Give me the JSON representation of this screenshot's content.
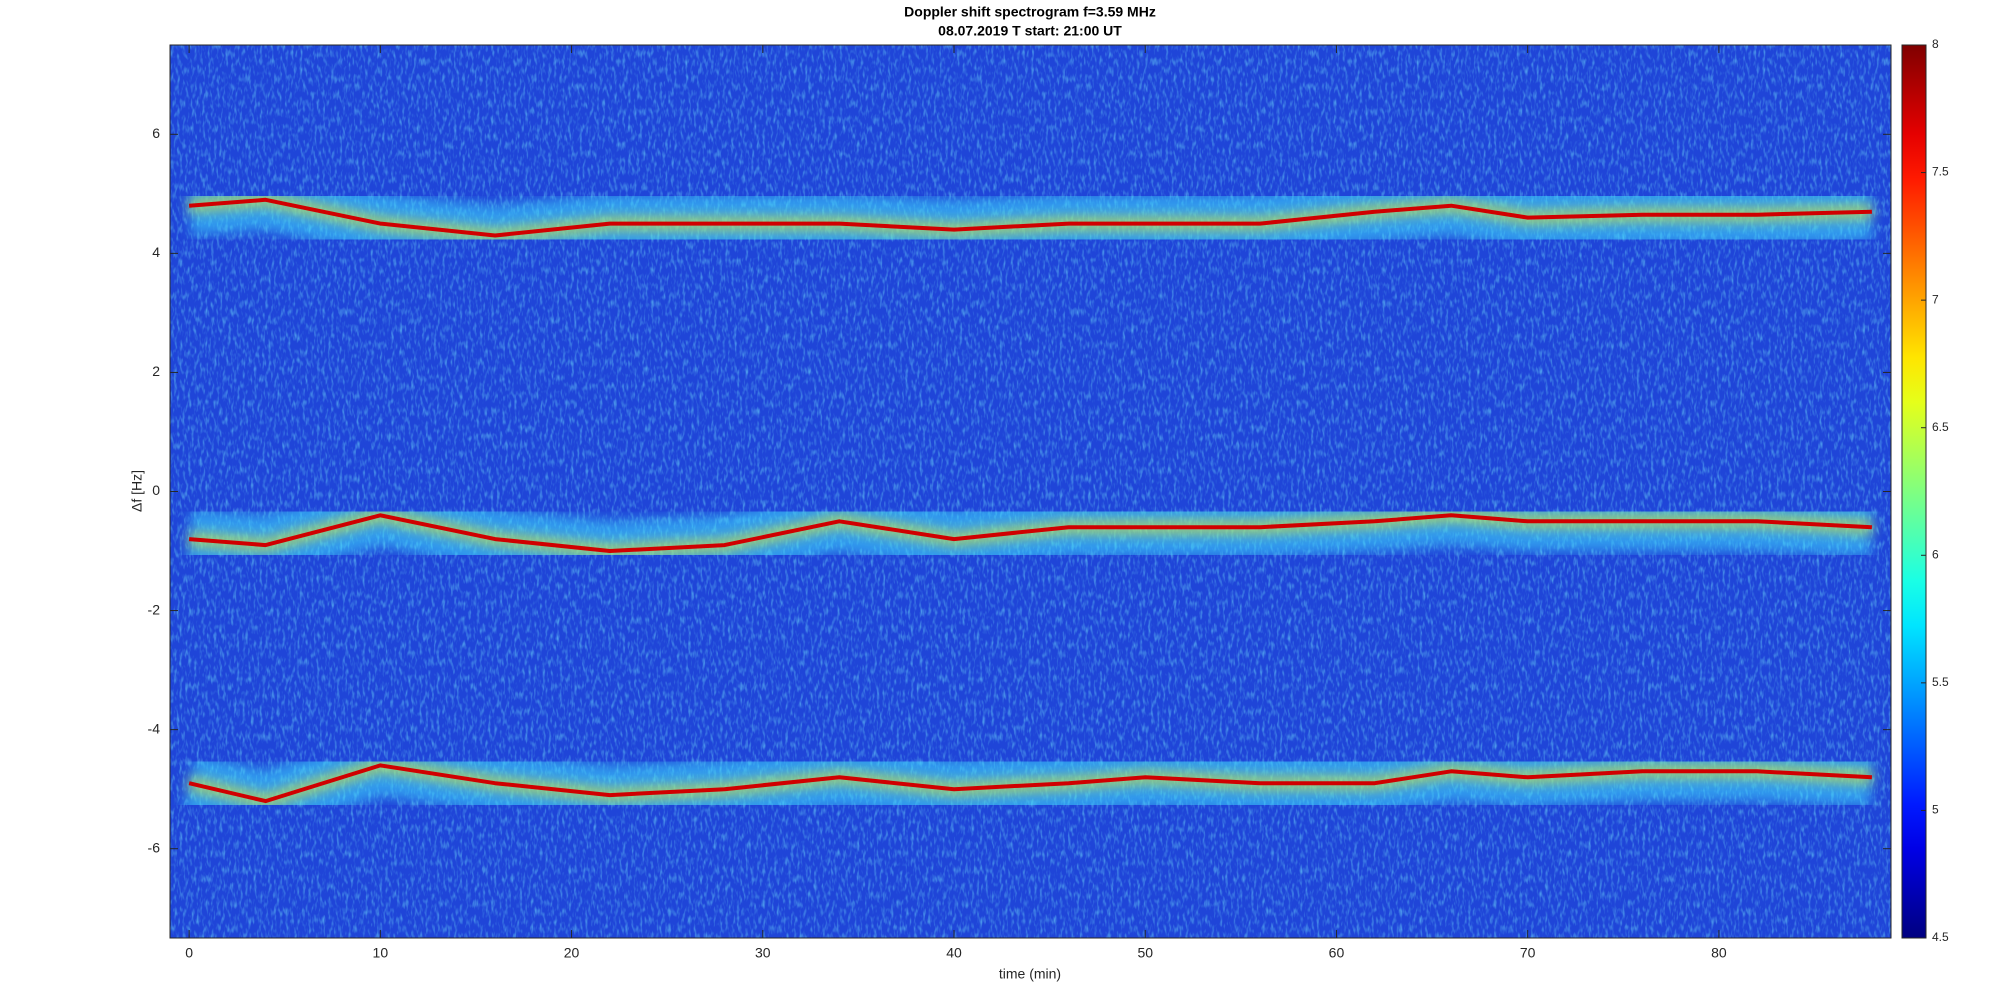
{
  "chart_data": {
    "type": "spectrogram",
    "title": "Doppler shift spectrogram f=3.59 MHz",
    "subtitle": "08.07.2019   T start: 21:00 UT",
    "x_label": "time (min)",
    "y_label": "Δf [Hz]",
    "x": [
      0,
      4,
      10,
      16,
      22,
      28,
      34,
      40,
      46,
      50,
      56,
      62,
      66,
      70,
      76,
      82,
      88
    ],
    "series": [
      {
        "color": "#d00000",
        "values": [
          4.8,
          4.9,
          4.5,
          4.3,
          4.5,
          4.5,
          4.5,
          4.4,
          4.5,
          4.5,
          4.5,
          4.7,
          4.8,
          4.6,
          4.65,
          4.65,
          4.7
        ]
      },
      {
        "color": "#d00000",
        "values": [
          -0.8,
          -0.9,
          -0.4,
          -0.8,
          -1.0,
          -0.9,
          -0.5,
          -0.8,
          -0.6,
          -0.6,
          -0.6,
          -0.5,
          -0.4,
          -0.5,
          -0.5,
          -0.5,
          -0.6
        ]
      },
      {
        "color": "#d00000",
        "values": [
          -4.9,
          -5.2,
          -4.6,
          -4.9,
          -5.1,
          -5.0,
          -4.8,
          -5.0,
          -4.9,
          -4.8,
          -4.9,
          -4.9,
          -4.7,
          -4.8,
          -4.7,
          -4.7,
          -4.8
        ]
      }
    ],
    "background_color": "#1f45d8",
    "xlim": [
      -1,
      89
    ],
    "xticks": [
      0,
      10,
      20,
      30,
      40,
      50,
      60,
      70,
      80
    ],
    "ylim": [
      -7.5,
      7.5
    ],
    "yticks": [
      -6,
      -4,
      -2,
      0,
      2,
      4,
      6
    ],
    "clim": [
      4.5,
      8
    ],
    "cticks": [
      4.5,
      5,
      5.5,
      6,
      6.5,
      7,
      7.5,
      8
    ],
    "colormap": "jet"
  }
}
